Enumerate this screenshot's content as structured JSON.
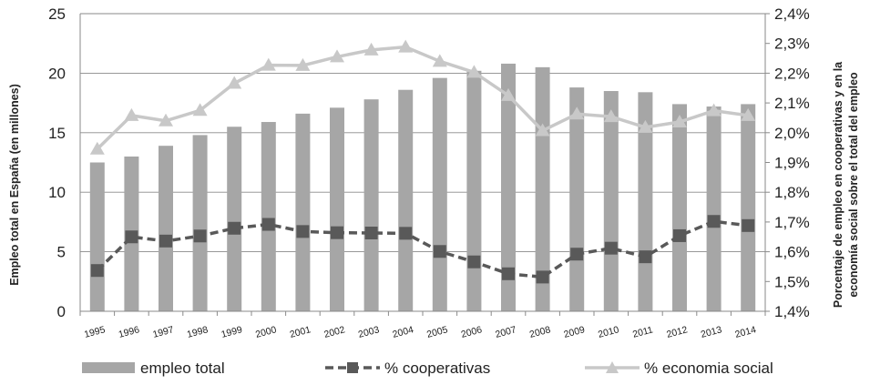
{
  "chart_data": {
    "type": "bar",
    "title": "",
    "xlabel": "",
    "ylabel": "Empleo total en España (en millones)",
    "y2label_lines": [
      "Porcentaje de empleo en cooperativas y en la",
      "economía social sobre el total del empleo"
    ],
    "categories": [
      "1995",
      "1996",
      "1997",
      "1998",
      "1999",
      "2000",
      "2001",
      "2002",
      "2003",
      "2004",
      "2005",
      "2006",
      "2007",
      "2008",
      "2009",
      "2010",
      "2011",
      "2012",
      "2013",
      "2014"
    ],
    "ylim": [
      0,
      25
    ],
    "y_ticks": [
      0,
      5,
      10,
      15,
      20,
      25
    ],
    "y2lim": [
      1.4,
      2.4
    ],
    "y2_ticks": [
      1.4,
      1.5,
      1.6,
      1.7,
      1.8,
      1.9,
      2.0,
      2.1,
      2.2,
      2.3,
      2.4
    ],
    "y2_tick_labels": [
      "1,4%",
      "1,5%",
      "1,6%",
      "1,7%",
      "1,8%",
      "1,9%",
      "2,0%",
      "2,1%",
      "2,2%",
      "2,3%",
      "2,4%"
    ],
    "grid": true,
    "legend_position": "bottom",
    "series": [
      {
        "name": "empleo total",
        "type": "bar",
        "axis": "left",
        "color": "#a6a6a6",
        "values": [
          12.5,
          13.0,
          13.9,
          14.8,
          15.5,
          15.9,
          16.6,
          17.1,
          17.8,
          18.6,
          19.6,
          20.2,
          20.8,
          20.5,
          18.8,
          18.5,
          18.4,
          17.4,
          17.2,
          17.4
        ]
      },
      {
        "name": "% cooperativas",
        "type": "line",
        "style": "dashed",
        "marker": "square",
        "axis": "right",
        "color": "#595959",
        "values": [
          1.537,
          1.65,
          1.636,
          1.653,
          1.679,
          1.692,
          1.668,
          1.664,
          1.663,
          1.662,
          1.601,
          1.566,
          1.526,
          1.515,
          1.592,
          1.612,
          1.583,
          1.654,
          1.702,
          1.688
        ]
      },
      {
        "name": "% economia social",
        "type": "line",
        "style": "solid",
        "marker": "triangle",
        "axis": "right",
        "color": "#c8c8c8",
        "values": [
          1.945,
          2.058,
          2.04,
          2.075,
          2.166,
          2.227,
          2.226,
          2.255,
          2.278,
          2.288,
          2.24,
          2.203,
          2.125,
          2.007,
          2.063,
          2.054,
          2.018,
          2.036,
          2.074,
          2.058
        ]
      }
    ]
  }
}
